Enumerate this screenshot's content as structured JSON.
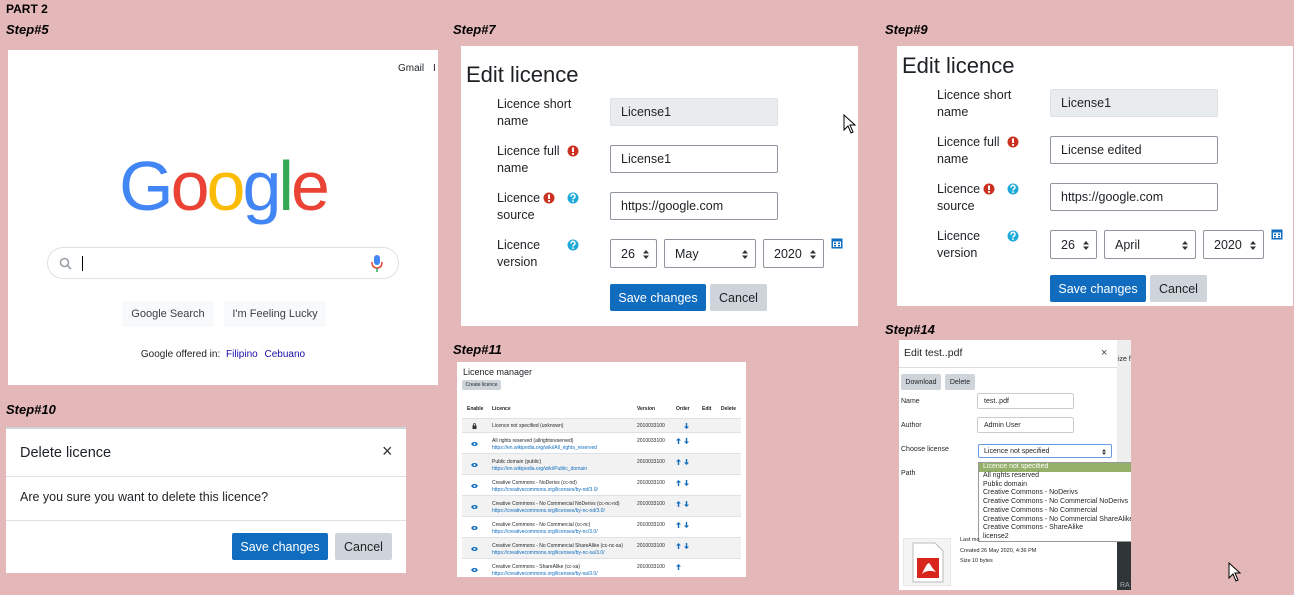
{
  "header": "PART 2",
  "step5": {
    "label": "Step#5",
    "top_links": [
      "Gmail",
      "I"
    ],
    "logo": "Google",
    "search_buttons": [
      "Google Search",
      "I'm Feeling Lucky"
    ],
    "offered_in": "Google offered in:",
    "languages": [
      "Filipino",
      "Cebuano"
    ]
  },
  "step7": {
    "label": "Step#7",
    "title": "Edit licence",
    "fields": [
      {
        "label": "Licence short name",
        "value": "License1",
        "readonly": true
      },
      {
        "label": "Licence full name",
        "value": "License1",
        "required": true
      },
      {
        "label": "Licence source",
        "value": "https://google.com",
        "required": true,
        "help": true
      },
      {
        "label": "Licence version",
        "help": true,
        "date": [
          "26",
          "May",
          "2020"
        ]
      }
    ],
    "buttons": [
      "Save changes",
      "Cancel"
    ]
  },
  "step9": {
    "label": "Step#9",
    "title": "Edit licence",
    "fields": [
      {
        "label": "Licence short name",
        "value": "License1",
        "readonly": true
      },
      {
        "label": "Licence full name",
        "value": "License edited",
        "required": true
      },
      {
        "label": "Licence source",
        "value": "https://google.com",
        "required": true,
        "help": true
      },
      {
        "label": "Licence version",
        "help": true,
        "date": [
          "26",
          "April",
          "2020"
        ]
      }
    ],
    "buttons": [
      "Save changes",
      "Cancel"
    ]
  },
  "step10": {
    "label": "Step#10",
    "title": "Delete licence",
    "close": "×",
    "message": "Are you sure you want to delete this licence?",
    "buttons": [
      "Save changes",
      "Cancel"
    ]
  },
  "step11": {
    "label": "Step#11",
    "title": "Licence manager",
    "create_button": "Create licence",
    "columns": [
      "Enable",
      "Licence",
      "Version",
      "Order",
      "Edit",
      "Delete"
    ],
    "rows": [
      {
        "name": "Licence not specified (unknown)",
        "version": "2010033100"
      },
      {
        "name": "All rights reserved (allrightsreserved)",
        "url": "https://en.wikipedia.org/wiki/All_rights_reserved",
        "version": "2010033100"
      },
      {
        "name": "Public domain (public)",
        "url": "https://en.wikipedia.org/wiki/Public_domain",
        "version": "2010033100"
      },
      {
        "name": "Creative Commons - NoDerivs (cc-nd)",
        "url": "https://creativecommons.org/licenses/by-nd/3.0/",
        "version": "2010033100"
      },
      {
        "name": "Creative Commons - No Commercial NoDerivs (cc-nc-nd)",
        "url": "https://creativecommons.org/licenses/by-nc-nd/3.0/",
        "version": "2010033100"
      },
      {
        "name": "Creative Commons - No Commercial (cc-nc)",
        "url": "https://creativecommons.org/licenses/by-nc/3.0/",
        "version": "2010033100"
      },
      {
        "name": "Creative Commons - No Commercial ShareAlike (cc-nc-sa)",
        "url": "https://creativecommons.org/licenses/by-nc-sa/3.0/",
        "version": "2010033100"
      },
      {
        "name": "Creative Commons - ShareAlike (cc-sa)",
        "url": "https://creativecommons.org/licenses/by-sa/3.0/",
        "version": "2010033100"
      }
    ]
  },
  "step14": {
    "label": "Step#14",
    "title": "Edit test..pdf",
    "close": "×",
    "side_text": "ize f",
    "buttons": [
      "Download",
      "Delete"
    ],
    "fields": [
      {
        "label": "Name",
        "value": "test..pdf"
      },
      {
        "label": "Author",
        "value": "Admin User"
      },
      {
        "label": "Choose license",
        "value": "Licence not specified"
      },
      {
        "label": "Path"
      }
    ],
    "options": [
      "Licence not specified",
      "All rights reserved",
      "Public domain",
      "Creative Commons - NoDerivs",
      "Creative Commons - No Commercial NoDerivs",
      "Creative Commons - No Commercial",
      "Creative Commons - No Commercial ShareAlike",
      "Creative Commons - ShareAlike",
      "license2"
    ],
    "info": [
      {
        "label": "Last mo"
      },
      {
        "label": "Created",
        "value": "26 May 2020, 4:36 PM"
      },
      {
        "label": "Size",
        "value": "10 bytes"
      }
    ],
    "side_bottom": "RA"
  }
}
